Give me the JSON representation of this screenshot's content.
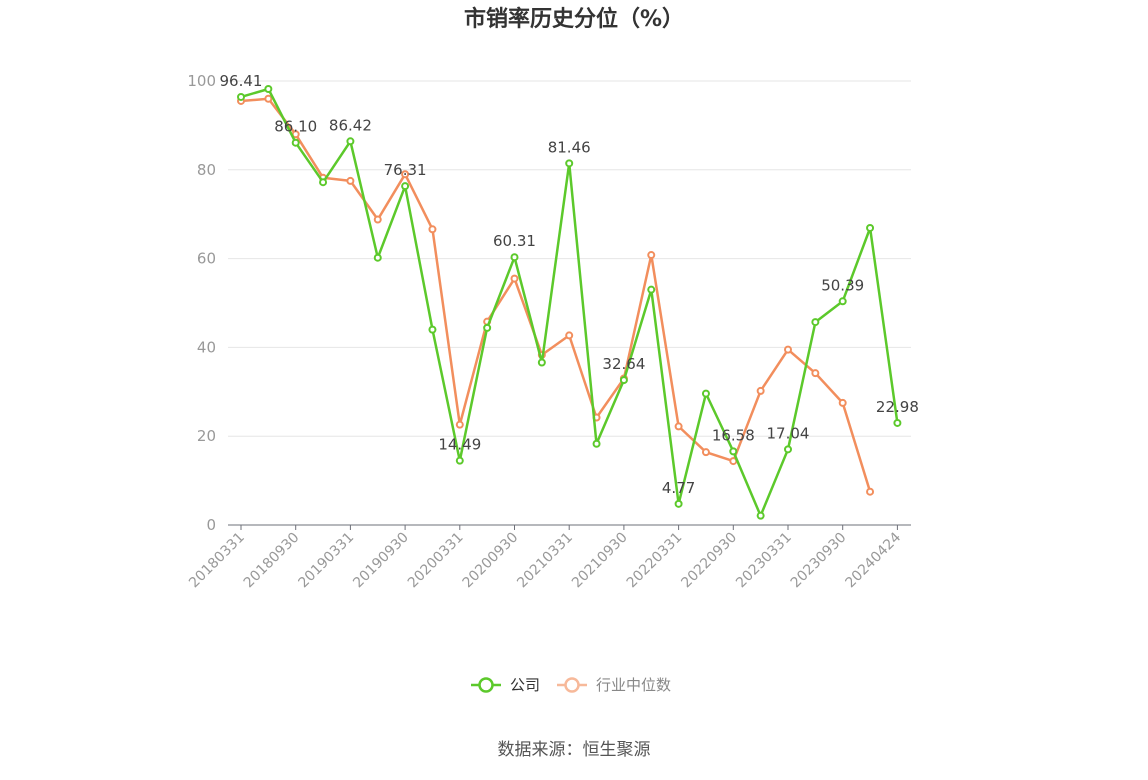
{
  "chart_data": {
    "type": "line",
    "title": "市销率历史分位（%）",
    "ylim": [
      0,
      100
    ],
    "yticks": [
      0,
      20,
      40,
      60,
      80,
      100
    ],
    "x_tick_labels": [
      "20180331",
      "20180930",
      "20190331",
      "20190930",
      "20200331",
      "20200930",
      "20210331",
      "20210930",
      "20220331",
      "20220930",
      "20230331",
      "20230930",
      "20240424"
    ],
    "x_tick_positions": [
      0,
      2,
      4,
      6,
      8,
      10,
      12,
      14,
      16,
      18,
      20,
      22,
      24
    ],
    "grid": true,
    "legend_position": "bottom",
    "series": [
      {
        "name": "公司",
        "color": "#5cc92b",
        "values": [
          96.41,
          98.2,
          86.1,
          77.2,
          86.42,
          60.2,
          76.31,
          44.0,
          14.49,
          44.4,
          60.31,
          36.6,
          81.46,
          18.3,
          32.64,
          53.0,
          4.77,
          29.6,
          16.58,
          2.1,
          17.04,
          45.7,
          50.39,
          66.9,
          22.98
        ],
        "data_labels": [
          "96.41",
          null,
          "86.10",
          null,
          "86.42",
          null,
          "76.31",
          null,
          "14.49",
          null,
          "60.31",
          null,
          "81.46",
          null,
          "32.64",
          null,
          "4.77",
          null,
          "16.58",
          null,
          "17.04",
          null,
          "50.39",
          null,
          "22.98"
        ]
      },
      {
        "name": "行业中位数",
        "color": "#f28e5d",
        "values": [
          95.5,
          96.0,
          88.0,
          78.2,
          77.5,
          68.8,
          79.0,
          66.6,
          22.6,
          45.8,
          55.5,
          38.3,
          42.7,
          24.2,
          33.0,
          60.8,
          22.2,
          16.4,
          14.4,
          30.2,
          39.5,
          34.2,
          27.5,
          7.5,
          null
        ]
      }
    ],
    "source_text": "数据来源：恒生聚源"
  }
}
